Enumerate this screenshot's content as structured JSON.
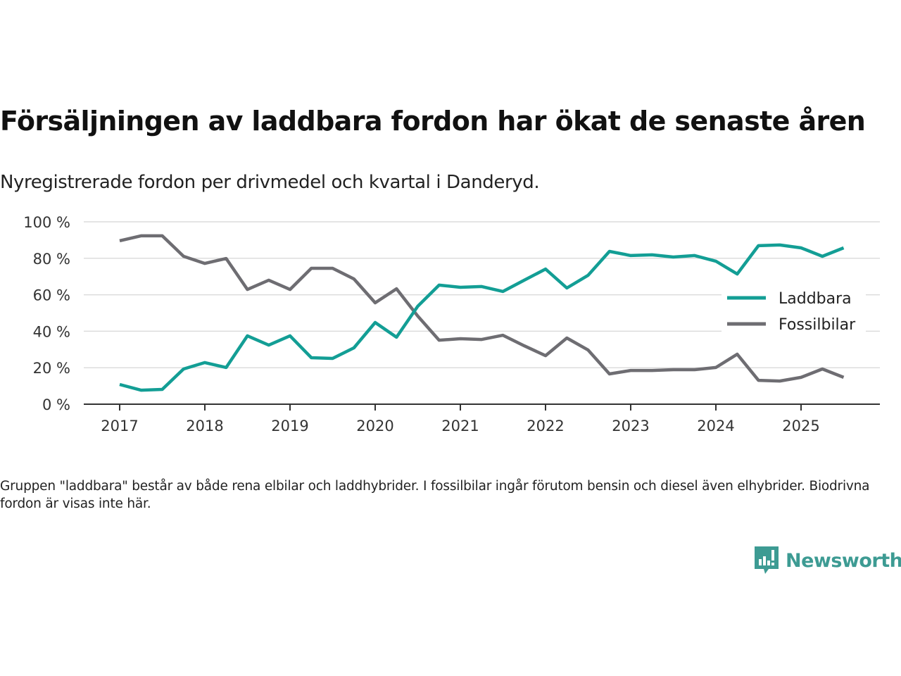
{
  "header": {
    "title": "Försäljningen av laddbara fordon har ökat de senaste åren",
    "subtitle": "Nyregistrerade fordon per drivmedel och kvartal i Danderyd."
  },
  "footnote": "Gruppen \"laddbara\" består av både rena elbilar och laddhybrider. I fossilbilar ingår förutom bensin och diesel även elhybrider. Biodrivna fordon är visas inte här.",
  "logo": {
    "text": "Newsworthy",
    "icon": "bar-chart-speech-bubble-icon",
    "color": "#3d9b93"
  },
  "chart_data": {
    "type": "line",
    "title": "Försäljningen av laddbara fordon har ökat de senaste åren",
    "subtitle": "Nyregistrerade fordon per drivmedel och kvartal i Danderyd.",
    "xlabel": "",
    "ylabel": "",
    "x": [
      "2017Q1",
      "2017Q2",
      "2017Q3",
      "2017Q4",
      "2018Q1",
      "2018Q2",
      "2018Q3",
      "2018Q4",
      "2019Q1",
      "2019Q2",
      "2019Q3",
      "2019Q4",
      "2020Q1",
      "2020Q2",
      "2020Q3",
      "2020Q4",
      "2021Q1",
      "2021Q2",
      "2021Q3",
      "2021Q4",
      "2022Q1",
      "2022Q2",
      "2022Q3",
      "2022Q4",
      "2023Q1",
      "2023Q2",
      "2023Q3",
      "2023Q4",
      "2024Q1",
      "2024Q2",
      "2024Q3",
      "2024Q4",
      "2025Q1",
      "2025Q2",
      "2025Q3"
    ],
    "x_tick_labels": [
      "2017",
      "2018",
      "2019",
      "2020",
      "2021",
      "2022",
      "2023",
      "2024",
      "2025"
    ],
    "y_tick_labels": [
      "0 %",
      "20 %",
      "40 %",
      "60 %",
      "80 %",
      "100 %"
    ],
    "y_ticks": [
      0,
      20,
      40,
      60,
      80,
      100
    ],
    "ylim": [
      0,
      100
    ],
    "grid": "horizontal",
    "legend_position": "right",
    "series": [
      {
        "name": "Laddbara",
        "color": "#139e95",
        "values": [
          10.8,
          7.7,
          8.1,
          19.3,
          22.8,
          20.1,
          37.5,
          32.4,
          37.5,
          25.5,
          25.1,
          30.9,
          44.8,
          36.7,
          53.7,
          65.3,
          64.1,
          64.5,
          61.8,
          68.0,
          74.1,
          63.7,
          70.7,
          83.8,
          81.5,
          81.9,
          80.7,
          81.5,
          78.4,
          71.4,
          86.9,
          87.3,
          85.7,
          81.1,
          85.7
        ]
      },
      {
        "name": "Fossilbilar",
        "color": "#6e6d72",
        "values": [
          89.6,
          92.3,
          92.3,
          81.1,
          77.2,
          79.9,
          62.9,
          68.0,
          62.9,
          74.5,
          74.5,
          68.7,
          55.6,
          63.3,
          48.3,
          35.1,
          35.9,
          35.5,
          37.8,
          32.0,
          26.6,
          36.3,
          29.7,
          16.6,
          18.5,
          18.5,
          18.9,
          18.9,
          20.1,
          27.4,
          13.1,
          12.7,
          14.7,
          19.3,
          14.7
        ]
      }
    ]
  }
}
